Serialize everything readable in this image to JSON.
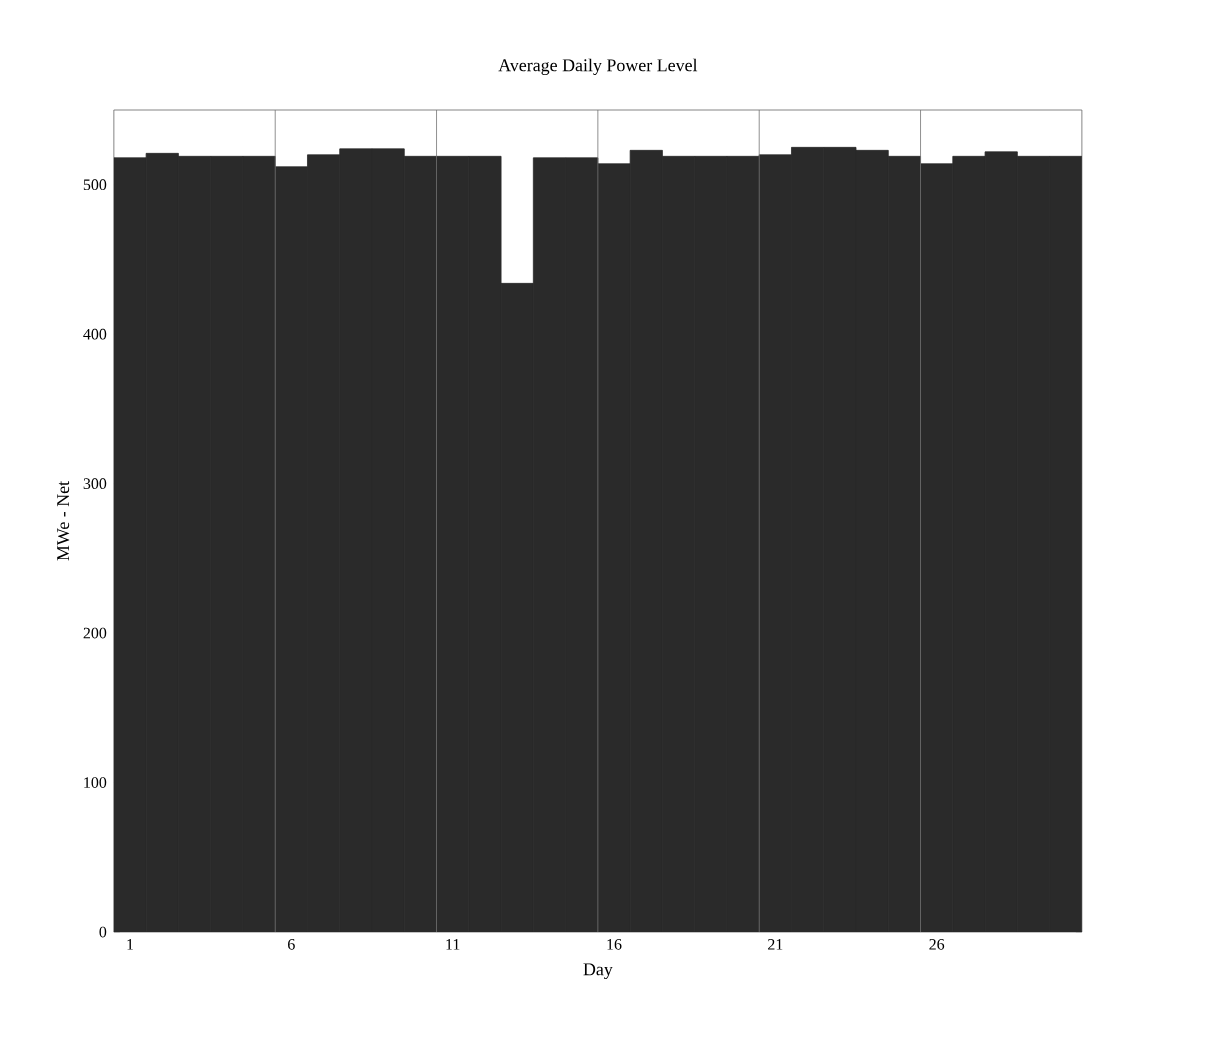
{
  "chart_data": {
    "type": "bar",
    "title": "Average Daily Power Level",
    "xlabel": "Day",
    "ylabel": "MWe - Net",
    "categories": [
      "1",
      null,
      null,
      null,
      null,
      "6",
      null,
      null,
      null,
      null,
      "11",
      null,
      null,
      null,
      null,
      "16",
      null,
      null,
      null,
      null,
      "21",
      null,
      null,
      null,
      null,
      "26",
      null,
      null,
      null,
      null
    ],
    "values": [
      518,
      521,
      519,
      519,
      519,
      512,
      520,
      524,
      524,
      519,
      519,
      519,
      434,
      518,
      518,
      514,
      523,
      519,
      519,
      519,
      520,
      525,
      525,
      523,
      519,
      514,
      519,
      522,
      519,
      519
    ],
    "color": "#2a2a2a",
    "ylim": [
      0,
      550
    ],
    "yticks": [
      0,
      100,
      200,
      300,
      400,
      500
    ],
    "grid": "x"
  }
}
